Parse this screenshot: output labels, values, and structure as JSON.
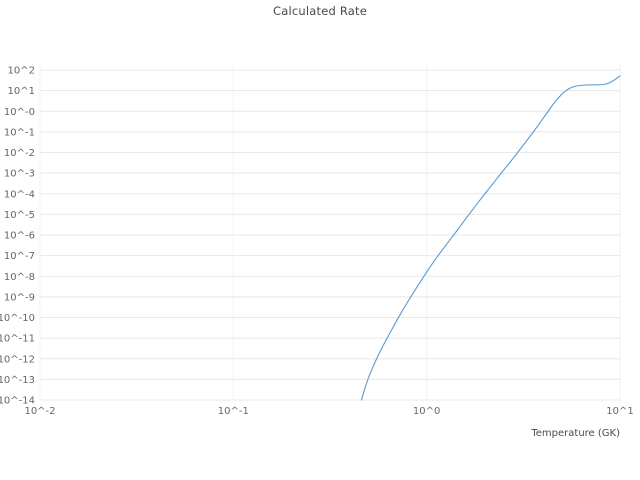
{
  "chart_data": {
    "type": "line",
    "title": "Calculated Rate",
    "xlabel": "Temperature (GK)",
    "ylabel": "",
    "x_scale": "log",
    "y_scale": "log",
    "xlim": [
      0.01,
      10
    ],
    "ylim": [
      1e-14,
      100
    ],
    "grid": true,
    "legend": "none",
    "x_ticks": [
      {
        "value": 0.01,
        "label": "10^-2"
      },
      {
        "value": 0.1,
        "label": "10^-1"
      },
      {
        "value": 1,
        "label": "10^0"
      },
      {
        "value": 10,
        "label": "10^1"
      }
    ],
    "y_ticks": [
      {
        "value": 100.0,
        "label": "10^2"
      },
      {
        "value": 10.0,
        "label": "10^1"
      },
      {
        "value": 1.0,
        "label": "10^-0"
      },
      {
        "value": 0.1,
        "label": "10^-1"
      },
      {
        "value": 0.01,
        "label": "10^-2"
      },
      {
        "value": 0.001,
        "label": "10^-3"
      },
      {
        "value": 0.0001,
        "label": "10^-4"
      },
      {
        "value": 1e-05,
        "label": "10^-5"
      },
      {
        "value": 1e-06,
        "label": "10^-6"
      },
      {
        "value": 1e-07,
        "label": "10^-7"
      },
      {
        "value": 1e-08,
        "label": "10^-8"
      },
      {
        "value": 1e-09,
        "label": "10^-9"
      },
      {
        "value": 1e-10,
        "label": "10^-10"
      },
      {
        "value": 1e-11,
        "label": "10^-11"
      },
      {
        "value": 1e-12,
        "label": "10^-12"
      },
      {
        "value": 1e-13,
        "label": "10^-13"
      },
      {
        "value": 1e-14,
        "label": "10^-14"
      }
    ],
    "series": [
      {
        "name": "calculated-rate",
        "color": "#5b9bd5",
        "points": [
          [
            0.46,
            1e-14
          ],
          [
            0.48,
            4e-14
          ],
          [
            0.5,
            1.2e-13
          ],
          [
            0.53,
            4.5e-13
          ],
          [
            0.56,
            1.4e-12
          ],
          [
            0.6,
            5e-12
          ],
          [
            0.65,
            2e-11
          ],
          [
            0.7,
            7e-11
          ],
          [
            0.75,
            2.2e-10
          ],
          [
            0.8,
            6e-10
          ],
          [
            0.9,
            3.5e-09
          ],
          [
            1.0,
            1.6e-08
          ],
          [
            1.1,
            6e-08
          ],
          [
            1.25,
            3e-07
          ],
          [
            1.4,
            1.2e-06
          ],
          [
            1.6,
            6.5e-06
          ],
          [
            1.8,
            2.8e-05
          ],
          [
            2.0,
            0.0001
          ],
          [
            2.25,
            0.0004
          ],
          [
            2.5,
            0.0014
          ],
          [
            2.75,
            0.0042
          ],
          [
            3.0,
            0.012
          ],
          [
            3.25,
            0.032
          ],
          [
            3.5,
            0.08
          ],
          [
            3.75,
            0.19
          ],
          [
            4.0,
            0.45
          ],
          [
            4.25,
            1.0
          ],
          [
            4.5,
            2.1
          ],
          [
            4.75,
            4.0
          ],
          [
            5.0,
            6.8
          ],
          [
            5.25,
            10.0
          ],
          [
            5.5,
            13.0
          ],
          [
            5.75,
            15.5
          ],
          [
            6.0,
            17.0
          ],
          [
            6.5,
            18.5
          ],
          [
            7.0,
            19.0
          ],
          [
            7.5,
            19.2
          ],
          [
            8.0,
            19.5
          ],
          [
            8.5,
            21.0
          ],
          [
            9.0,
            26.0
          ],
          [
            9.5,
            36.0
          ],
          [
            10.0,
            52.0
          ]
        ]
      }
    ],
    "colors": {
      "grid": "#e8e8e8",
      "grid_minor": "#f3f3f3",
      "tick_label": "#666666",
      "axis_label": "#4a4a4a",
      "title": "#4a4a4a"
    }
  }
}
